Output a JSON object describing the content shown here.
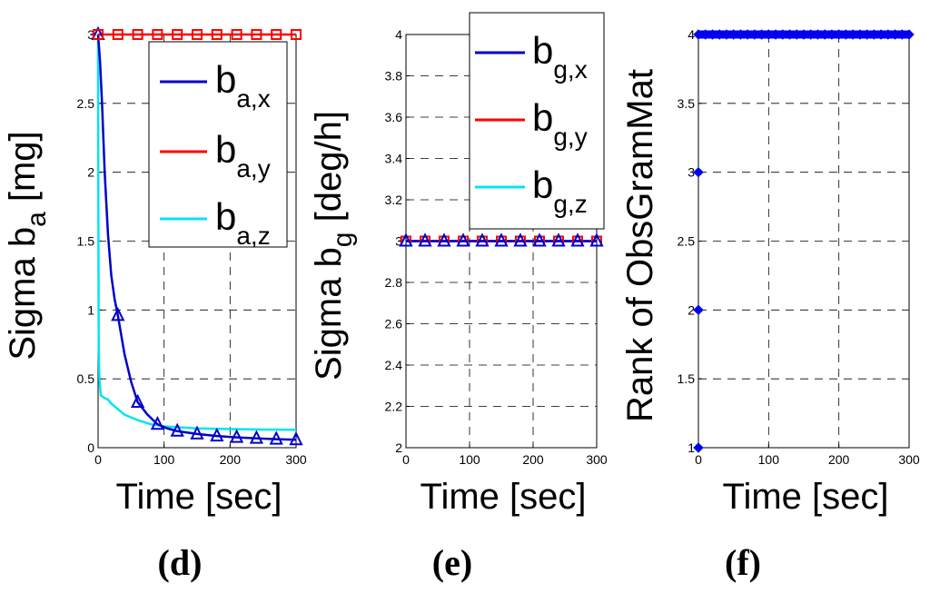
{
  "chart_data": [
    {
      "type": "line",
      "panel": "d",
      "caption": "(d)",
      "ylabel_main": "Sigma b",
      "ylabel_sub": "a",
      "ylabel_unit": "[mg]",
      "xlabel": "Time [sec]",
      "xlim": [
        0,
        300
      ],
      "ylim": [
        0,
        3
      ],
      "xticks": [
        0,
        100,
        200,
        300
      ],
      "yticks": [
        0,
        0.5,
        1,
        1.5,
        2,
        2.5,
        3
      ],
      "xtick_labels": [
        "0",
        "100",
        "200",
        "300"
      ],
      "ytick_labels": [
        "0",
        "0.5",
        "1",
        "1.5",
        "2",
        "2.5",
        "3"
      ],
      "legend_location": "top-right",
      "series": [
        {
          "name": "b_a,x",
          "legend_main": "b",
          "legend_sub": "a,x",
          "color": "#0000CC",
          "marker": "triangle",
          "x": [
            0,
            3,
            6,
            10,
            15,
            20,
            25,
            30,
            40,
            50,
            60,
            75,
            90,
            105,
            120,
            150,
            180,
            210,
            240,
            270,
            300
          ],
          "y": [
            3.0,
            2.8,
            2.5,
            2.0,
            1.55,
            1.25,
            1.08,
            0.96,
            0.68,
            0.48,
            0.33,
            0.24,
            0.17,
            0.14,
            0.12,
            0.1,
            0.085,
            0.075,
            0.068,
            0.062,
            0.058
          ],
          "marker_x": [
            0,
            30,
            60,
            90,
            120,
            150,
            180,
            210,
            240,
            270,
            300
          ],
          "marker_y": [
            3.0,
            0.96,
            0.33,
            0.17,
            0.12,
            0.1,
            0.085,
            0.075,
            0.068,
            0.062,
            0.058
          ]
        },
        {
          "name": "b_a,y",
          "legend_main": "b",
          "legend_sub": "a,y",
          "color": "#FF0000",
          "marker": "square",
          "x": [
            0,
            300
          ],
          "y": [
            3.0,
            3.0
          ],
          "marker_x": [
            0,
            30,
            60,
            90,
            120,
            150,
            180,
            210,
            240,
            270,
            300
          ],
          "marker_y": [
            3,
            3,
            3,
            3,
            3,
            3,
            3,
            3,
            3,
            3,
            3
          ]
        },
        {
          "name": "b_a,z",
          "legend_main": "b",
          "legend_sub": "a,z",
          "color": "#00E5EE",
          "marker": "none",
          "x": [
            0,
            0.3,
            0.8,
            1,
            2,
            4,
            10,
            15,
            20,
            30,
            40,
            60,
            80,
            100,
            150,
            200,
            250,
            300
          ],
          "y": [
            3.0,
            2.0,
            1.0,
            0.72,
            0.5,
            0.38,
            0.36,
            0.35,
            0.32,
            0.28,
            0.24,
            0.2,
            0.17,
            0.155,
            0.14,
            0.135,
            0.132,
            0.13
          ],
          "marker_x": [],
          "marker_y": []
        }
      ]
    },
    {
      "type": "line",
      "panel": "e",
      "caption": "(e)",
      "ylabel_main": "Sigma b",
      "ylabel_sub": "g",
      "ylabel_unit": "[deg/h]",
      "xlabel": "Time [sec]",
      "xlim": [
        0,
        300
      ],
      "ylim": [
        2,
        4
      ],
      "xticks": [
        0,
        100,
        200,
        300
      ],
      "yticks": [
        2,
        2.2,
        2.4,
        2.6,
        2.8,
        3,
        3.2,
        3.4,
        3.6,
        3.8,
        4
      ],
      "xtick_labels": [
        "0",
        "100",
        "200",
        "300"
      ],
      "ytick_labels": [
        "2",
        "2.2",
        "2.4",
        "2.6",
        "2.8",
        "3",
        "3.2",
        "3.4",
        "3.6",
        "3.8",
        "4"
      ],
      "legend_location": "top-right",
      "series": [
        {
          "name": "b_g,x",
          "legend_main": "b",
          "legend_sub": "g,x",
          "color": "#0000CC",
          "marker": "triangle",
          "x": [
            0,
            300
          ],
          "y": [
            3.0,
            3.0
          ],
          "marker_x": [
            0,
            30,
            60,
            90,
            120,
            150,
            180,
            210,
            240,
            270,
            300
          ],
          "marker_y": [
            3,
            3,
            3,
            3,
            3,
            3,
            3,
            3,
            3,
            3,
            3
          ]
        },
        {
          "name": "b_g,y",
          "legend_main": "b",
          "legend_sub": "g,y",
          "color": "#FF0000",
          "marker": "square",
          "x": [
            0,
            300
          ],
          "y": [
            3.0,
            3.0
          ],
          "marker_x": [
            0,
            30,
            60,
            90,
            120,
            150,
            180,
            210,
            240,
            270,
            300
          ],
          "marker_y": [
            3,
            3,
            3,
            3,
            3,
            3,
            3,
            3,
            3,
            3,
            3
          ]
        },
        {
          "name": "b_g,z",
          "legend_main": "b",
          "legend_sub": "g,z",
          "color": "#00E5EE",
          "marker": "none",
          "x": [
            0,
            300
          ],
          "y": [
            3.0,
            3.0
          ],
          "marker_x": [],
          "marker_y": []
        }
      ]
    },
    {
      "type": "scatter",
      "panel": "f",
      "caption": "(f)",
      "ylabel_main": "Rank of ObsGramMat",
      "ylabel_sub": "",
      "ylabel_unit": "",
      "xlabel": "Time [sec]",
      "xlim": [
        0,
        300
      ],
      "ylim": [
        1,
        4
      ],
      "xticks": [
        0,
        100,
        200,
        300
      ],
      "yticks": [
        1,
        1.5,
        2,
        2.5,
        3,
        3.5,
        4
      ],
      "xtick_labels": [
        "0",
        "100",
        "200",
        "300"
      ],
      "ytick_labels": [
        "1",
        "1.5",
        "2",
        "2.5",
        "3",
        "3.5",
        "4"
      ],
      "legend_location": "none",
      "series": [
        {
          "name": "rank",
          "legend_main": "",
          "legend_sub": "",
          "color": "#0000EE",
          "marker": "diamond",
          "x": [],
          "y": [],
          "marker_x": [
            0,
            0,
            0,
            0,
            10,
            20,
            30,
            40,
            50,
            60,
            70,
            80,
            90,
            100,
            110,
            120,
            130,
            140,
            150,
            160,
            170,
            180,
            190,
            200,
            210,
            220,
            230,
            240,
            250,
            260,
            270,
            280,
            290,
            300
          ],
          "marker_y": [
            1,
            2,
            3,
            4,
            4,
            4,
            4,
            4,
            4,
            4,
            4,
            4,
            4,
            4,
            4,
            4,
            4,
            4,
            4,
            4,
            4,
            4,
            4,
            4,
            4,
            4,
            4,
            4,
            4,
            4,
            4,
            4,
            4,
            4
          ]
        }
      ]
    }
  ]
}
